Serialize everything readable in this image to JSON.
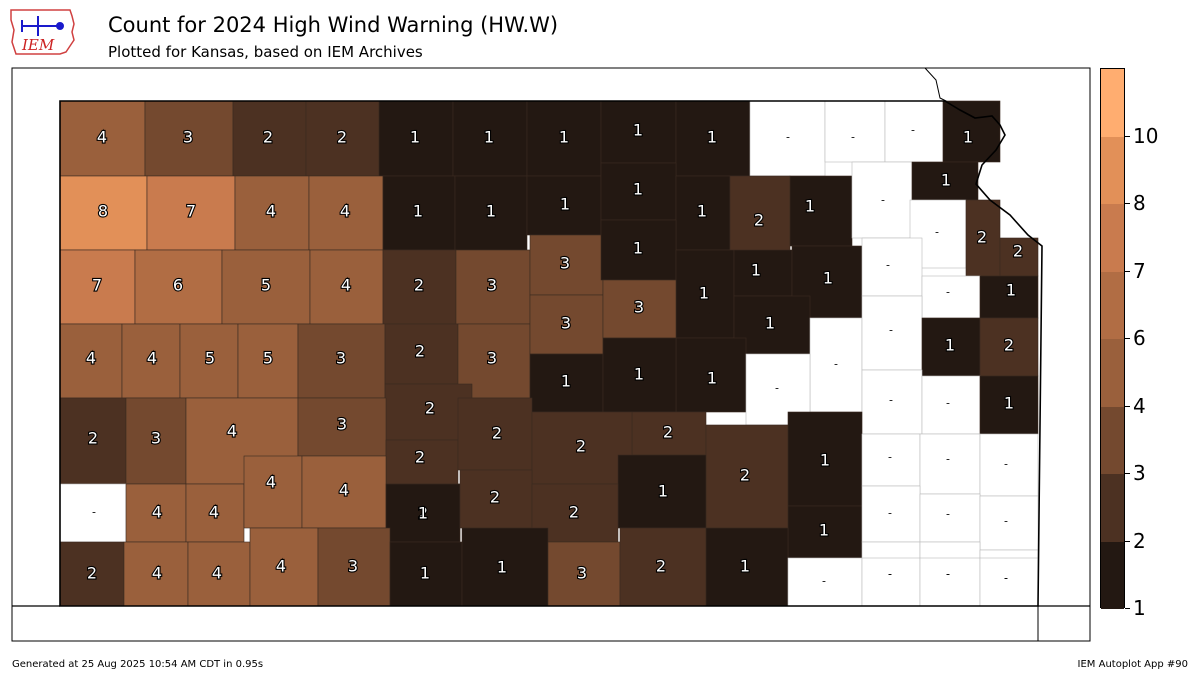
{
  "header": {
    "logo_text": "IEM",
    "title": "Count for 2024 High Wind Warning (HW.W)",
    "subtitle": "Plotted for Kansas, based on IEM Archives"
  },
  "footer": {
    "generated": "Generated at 25 Aug 2025 10:54 AM CDT in 0.95s",
    "app": "IEM Autoplot App #90"
  },
  "colors": {
    "c1": "#231812",
    "c2": "#4c3122",
    "c3": "#74492f",
    "c4": "#9a603c",
    "c5": "#b16d44",
    "c6": "#c97b4e",
    "c7": "#e29058",
    "c8": "#ffad70",
    "zero": "#ffffff"
  },
  "colorbar": {
    "ticks": [
      "1",
      "2",
      "3",
      "4",
      "6",
      "7",
      "8",
      "10"
    ],
    "bins": [
      "c1",
      "c2",
      "c3",
      "c4",
      "c5",
      "c6",
      "c7",
      "c8"
    ]
  },
  "map_data": {
    "state": "Kansas",
    "counties": [
      {
        "label": "4",
        "value": 4
      },
      {
        "label": "3",
        "value": 3
      },
      {
        "label": "2",
        "value": 2
      },
      {
        "label": "2",
        "value": 2
      },
      {
        "label": "1",
        "value": 1
      },
      {
        "label": "1",
        "value": 1
      },
      {
        "label": "1",
        "value": 1
      },
      {
        "label": "1",
        "value": 1
      },
      {
        "label": "1",
        "value": 1
      },
      {
        "label": "-",
        "value": 0
      },
      {
        "label": "-",
        "value": 0
      },
      {
        "label": "-",
        "value": 0
      },
      {
        "label": "1",
        "value": 1
      },
      {
        "label": "8",
        "value": 8
      },
      {
        "label": "7",
        "value": 7
      },
      {
        "label": "4",
        "value": 4
      },
      {
        "label": "4",
        "value": 4
      },
      {
        "label": "1",
        "value": 1
      },
      {
        "label": "1",
        "value": 1
      },
      {
        "label": "1",
        "value": 1
      },
      {
        "label": "1",
        "value": 1
      },
      {
        "label": "1",
        "value": 1
      },
      {
        "label": "2",
        "value": 2
      },
      {
        "label": "1",
        "value": 1
      },
      {
        "label": "-",
        "value": 0
      },
      {
        "label": "1",
        "value": 1
      },
      {
        "label": "-",
        "value": 0
      },
      {
        "label": "2",
        "value": 2
      },
      {
        "label": "2",
        "value": 2
      },
      {
        "label": "7",
        "value": 7
      },
      {
        "label": "6",
        "value": 6
      },
      {
        "label": "5",
        "value": 5
      },
      {
        "label": "4",
        "value": 4
      },
      {
        "label": "2",
        "value": 2
      },
      {
        "label": "3",
        "value": 3
      },
      {
        "label": "3",
        "value": 3
      },
      {
        "label": "1",
        "value": 1
      },
      {
        "label": "1",
        "value": 1
      },
      {
        "label": "1",
        "value": 1
      },
      {
        "label": "1",
        "value": 1
      },
      {
        "label": "-",
        "value": 0
      },
      {
        "label": "-",
        "value": 0
      },
      {
        "label": "1",
        "value": 1
      },
      {
        "label": "4",
        "value": 4
      },
      {
        "label": "4",
        "value": 4
      },
      {
        "label": "5",
        "value": 5
      },
      {
        "label": "5",
        "value": 5
      },
      {
        "label": "3",
        "value": 3
      },
      {
        "label": "2",
        "value": 2
      },
      {
        "label": "3",
        "value": 3
      },
      {
        "label": "3",
        "value": 3
      },
      {
        "label": "3",
        "value": 3
      },
      {
        "label": "1",
        "value": 1
      },
      {
        "label": "1",
        "value": 1
      },
      {
        "label": "-",
        "value": 0
      },
      {
        "label": "-",
        "value": 0
      },
      {
        "label": "1",
        "value": 1
      },
      {
        "label": "2",
        "value": 2
      },
      {
        "label": "2",
        "value": 2
      },
      {
        "label": "2",
        "value": 2
      },
      {
        "label": "1",
        "value": 1
      },
      {
        "label": "1",
        "value": 1
      },
      {
        "label": "-",
        "value": 0
      },
      {
        "label": "-",
        "value": 0
      },
      {
        "label": "-",
        "value": 0
      },
      {
        "label": "1",
        "value": 1
      },
      {
        "label": "2",
        "value": 2
      },
      {
        "label": "3",
        "value": 3
      },
      {
        "label": "4",
        "value": 4
      },
      {
        "label": "3",
        "value": 3
      },
      {
        "label": "2",
        "value": 2
      },
      {
        "label": "2",
        "value": 2
      },
      {
        "label": "2",
        "value": 2
      },
      {
        "label": "2",
        "value": 2
      },
      {
        "label": "1",
        "value": 1
      },
      {
        "label": "1",
        "value": 1
      },
      {
        "label": "-",
        "value": 0
      },
      {
        "label": "-",
        "value": 0
      },
      {
        "label": "-",
        "value": 0
      },
      {
        "label": "-",
        "value": 0
      },
      {
        "label": "4",
        "value": 4
      },
      {
        "label": "4",
        "value": 4
      },
      {
        "label": "2",
        "value": 2
      },
      {
        "label": "4",
        "value": 4
      },
      {
        "label": "4",
        "value": 4
      },
      {
        "label": "1",
        "value": 1
      },
      {
        "label": "2",
        "value": 2
      },
      {
        "label": "2",
        "value": 2
      },
      {
        "label": "1",
        "value": 1
      },
      {
        "label": "-",
        "value": 0
      },
      {
        "label": "-",
        "value": 0
      },
      {
        "label": "-",
        "value": 0
      },
      {
        "label": "-",
        "value": 0
      },
      {
        "label": "-",
        "value": 0
      },
      {
        "label": "-",
        "value": 0
      },
      {
        "label": "2",
        "value": 2
      },
      {
        "label": "4",
        "value": 4
      },
      {
        "label": "4",
        "value": 4
      },
      {
        "label": "4",
        "value": 4
      },
      {
        "label": "3",
        "value": 3
      },
      {
        "label": "1",
        "value": 1
      },
      {
        "label": "1",
        "value": 1
      },
      {
        "label": "3",
        "value": 3
      },
      {
        "label": "2",
        "value": 2
      },
      {
        "label": "1",
        "value": 1
      },
      {
        "label": "-",
        "value": 0
      },
      {
        "label": "-",
        "value": 0
      },
      {
        "label": "-",
        "value": 0
      },
      {
        "label": "-",
        "value": 0
      }
    ]
  }
}
